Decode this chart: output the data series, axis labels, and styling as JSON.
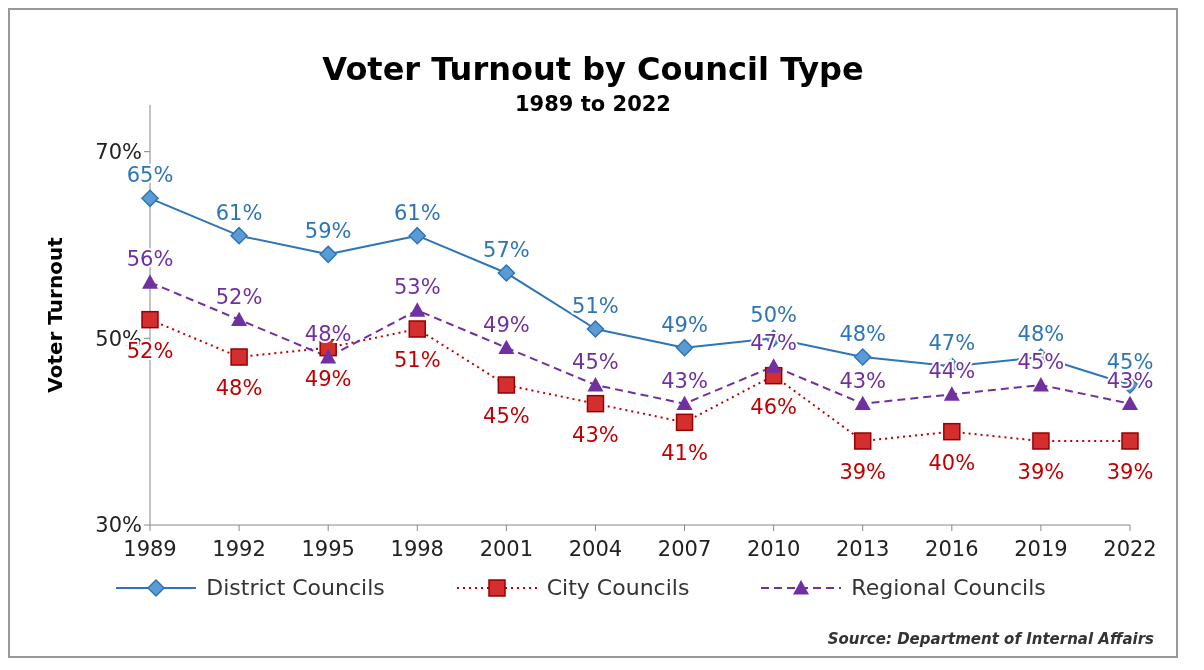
{
  "chart_data": {
    "type": "line",
    "title": "Voter Turnout by Council Type",
    "subtitle": "1989 to 2022",
    "ylabel": "Voter Turnout",
    "categories": [
      "1989",
      "1992",
      "1995",
      "1998",
      "2001",
      "2004",
      "2007",
      "2010",
      "2013",
      "2016",
      "2019",
      "2022"
    ],
    "series": [
      {
        "name": "District Councils",
        "color": "#2e75b6",
        "marker": "diamond",
        "line_style": "solid",
        "values": [
          65,
          61,
          59,
          61,
          57,
          51,
          49,
          50,
          48,
          47,
          48,
          45
        ],
        "value_labels": [
          "65%",
          "61%",
          "59%",
          "61%",
          "57%",
          "51%",
          "49%",
          "50%",
          "48%",
          "47%",
          "48%",
          "45%"
        ]
      },
      {
        "name": "City Councils",
        "color": "#c00000",
        "marker": "square",
        "line_style": "dotted",
        "values": [
          52,
          48,
          49,
          51,
          45,
          43,
          41,
          46,
          39,
          40,
          39,
          39
        ],
        "value_labels": [
          "52%",
          "48%",
          "49%",
          "51%",
          "45%",
          "43%",
          "41%",
          "46%",
          "39%",
          "40%",
          "39%",
          "39%"
        ]
      },
      {
        "name": "Regional Councils",
        "color": "#7030a0",
        "marker": "triangle",
        "line_style": "dashed",
        "values": [
          56,
          52,
          48,
          53,
          49,
          45,
          43,
          47,
          43,
          44,
          45,
          43
        ],
        "value_labels": [
          "56%",
          "52%",
          "48%",
          "53%",
          "49%",
          "45%",
          "43%",
          "47%",
          "43%",
          "44%",
          "45%",
          "43%"
        ]
      }
    ],
    "ylim": [
      30,
      75
    ],
    "yticks": [
      {
        "value": 30,
        "label": "30%"
      },
      {
        "value": 50,
        "label": "50%"
      },
      {
        "value": 70,
        "label": "70%"
      }
    ],
    "grid": false,
    "legend": "bottom",
    "annotations": [
      "Source: Department of Internal Affairs"
    ]
  }
}
